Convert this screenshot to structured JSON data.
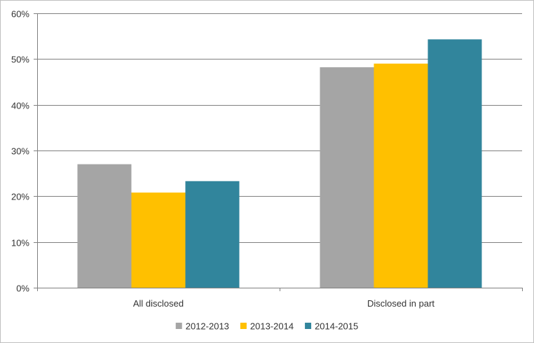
{
  "chart_data": {
    "type": "bar",
    "categories": [
      "All disclosed",
      "Disclosed in part"
    ],
    "series": [
      {
        "name": "2012-2013",
        "values": [
          27.0,
          48.2
        ],
        "color": "#a5a5a5"
      },
      {
        "name": "2013-2014",
        "values": [
          20.8,
          49.0
        ],
        "color": "#ffc000"
      },
      {
        "name": "2014-2015",
        "values": [
          23.3,
          54.3
        ],
        "color": "#31859c"
      }
    ],
    "y_ticks": [
      "0%",
      "10%",
      "20%",
      "30%",
      "40%",
      "50%",
      "60%"
    ],
    "ylim": [
      0,
      60
    ],
    "grid": true,
    "legend_position": "bottom",
    "title": "",
    "xlabel": "",
    "ylabel": ""
  }
}
